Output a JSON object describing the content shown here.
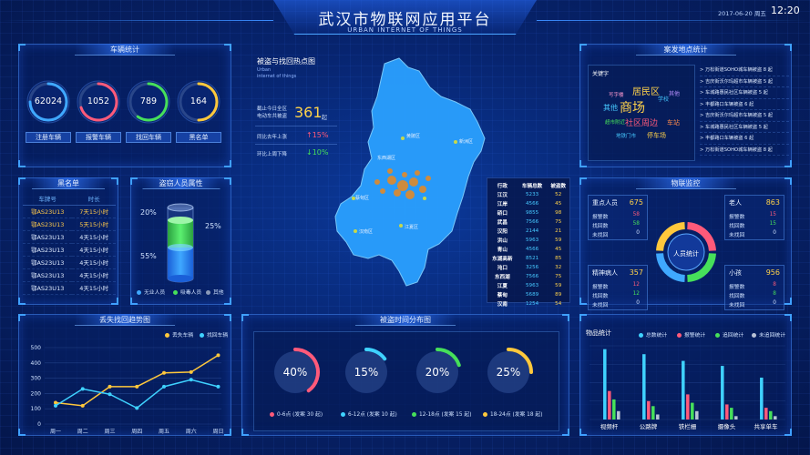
{
  "header": {
    "title": "武汉市物联网应用平台",
    "subtitle": "URBAN INTERNET OF THINGS",
    "date": "2017-06-20 周五",
    "time": "12:20"
  },
  "vehicle_stats": {
    "title": "车辆统计",
    "items": [
      {
        "value": "62024",
        "label": "注册车辆",
        "color": "#3fa8ff",
        "frac": 0.75
      },
      {
        "value": "1052",
        "label": "报警车辆",
        "color": "#ff5a7a",
        "frac": 0.7
      },
      {
        "value": "789",
        "label": "找回车辆",
        "color": "#46e05a",
        "frac": 0.6
      },
      {
        "value": "164",
        "label": "黑名单",
        "color": "#ffc83c",
        "frac": 0.5
      }
    ]
  },
  "blacklist": {
    "title": "黑名单",
    "headers": [
      "车牌号",
      "时长"
    ],
    "rows": [
      {
        "plate": "鄂AS23U13",
        "time": "7天15小时"
      },
      {
        "plate": "鄂AS23U13",
        "time": "5天15小时"
      },
      {
        "plate": "鄂AS23U13",
        "time": "4天15小时"
      },
      {
        "plate": "鄂AS23U13",
        "time": "4天15小时"
      },
      {
        "plate": "鄂AS23U13",
        "time": "4天15小时"
      },
      {
        "plate": "鄂AS23U13",
        "time": "4天15小时"
      },
      {
        "plate": "鄂AS23U13",
        "time": "4天15小时"
      }
    ]
  },
  "thief": {
    "title": "盗窃人员属性",
    "pct_top": "20%",
    "pct_right": "25%",
    "pct_bottom": "55%",
    "legend": [
      {
        "label": "无业人员",
        "color": "#3fa8ff"
      },
      {
        "label": "吸毒人员",
        "color": "#46e05a"
      },
      {
        "label": "其他",
        "color": "#8a99b8"
      }
    ]
  },
  "heatmap": {
    "title": "被盗与找回热点图",
    "sub1": "Urban",
    "sub2": "internet of things",
    "stat1_label1": "截止今日全区",
    "stat1_label2": "电动车共被盗",
    "stat1_value": "361",
    "stat1_unit": "起",
    "stat2_label": "同比去年上涨",
    "stat2_value": "↑15%",
    "stat3_label": "环比上周下降",
    "stat3_value": "↓10%",
    "districts": [
      "黄陂区",
      "新洲区",
      "蔡甸区",
      "江夏区",
      "汉南区",
      "东西湖区"
    ]
  },
  "district_table": {
    "headers": [
      "行政",
      "车辆总数",
      "被盗数"
    ],
    "rows": [
      [
        "江汉",
        "5233",
        "52"
      ],
      [
        "江岸",
        "4566",
        "45"
      ],
      [
        "硚口",
        "9855",
        "98"
      ],
      [
        "武昌",
        "7566",
        "75"
      ],
      [
        "汉阳",
        "2144",
        "21"
      ],
      [
        "洪山",
        "5963",
        "59"
      ],
      [
        "青山",
        "4566",
        "45"
      ],
      [
        "东湖高新",
        "8521",
        "85"
      ],
      [
        "沌口",
        "3256",
        "32"
      ],
      [
        "东西湖",
        "7566",
        "75"
      ],
      [
        "江夏",
        "5963",
        "59"
      ],
      [
        "蔡甸",
        "5689",
        "89"
      ],
      [
        "汉南",
        "1254",
        "54"
      ]
    ]
  },
  "hotspots": {
    "title": "案发地点统计",
    "keyword_label": "关键字",
    "words": [
      "居民区",
      "商场",
      "社区周边",
      "学校",
      "其他",
      "车站",
      "超市附近",
      "停车场",
      "地铁门市",
      "其他",
      "写字楼"
    ],
    "items": [
      "> 万松街道SOHO城车辆被盗 8 起",
      "> 吉庆街沃尔玛超市车辆被盗 5 起",
      "> 车城路惠民社区车辆被盗 5 起",
      "> 丰都路口车辆被盗 6 起",
      "> 吉庆街沃尔玛超市车辆被盗 5 起",
      "> 车城路惠民社区车辆被盗 5 起",
      "> 丰都路口车辆被盗 6 起",
      "> 万松街道SOHO城车辆被盗 8 起"
    ]
  },
  "iot": {
    "title": "物联监控",
    "center_label": "人员统计",
    "groups": [
      {
        "name": "重点人员",
        "total": "675",
        "rows": [
          [
            "报警数",
            "58"
          ],
          [
            "找回数",
            "58"
          ],
          [
            "未找回",
            "0"
          ]
        ]
      },
      {
        "name": "老人",
        "total": "863",
        "rows": [
          [
            "报警数",
            "15"
          ],
          [
            "找回数",
            "15"
          ],
          [
            "未找回",
            "0"
          ]
        ]
      },
      {
        "name": "精神病人",
        "total": "357",
        "rows": [
          [
            "报警数",
            "12"
          ],
          [
            "找回数",
            "12"
          ],
          [
            "未找回",
            "0"
          ]
        ]
      },
      {
        "name": "小孩",
        "total": "956",
        "rows": [
          [
            "报警数",
            "8"
          ],
          [
            "找回数",
            "8"
          ],
          [
            "未找回",
            "0"
          ]
        ]
      }
    ],
    "ring_colors": [
      "#ff5a7a",
      "#46e05a",
      "#3fa8ff",
      "#ffc83c"
    ]
  },
  "trend": {
    "title": "丢失找回趋势图",
    "legend": [
      {
        "label": "丢失车辆",
        "color": "#ffc83c"
      },
      {
        "label": "找回车辆",
        "color": "#3fd2ff"
      }
    ]
  },
  "time_dist": {
    "title": "被盗时间分布图",
    "items": [
      {
        "pct": "40%",
        "frac": 0.4,
        "color": "#ff5a7a",
        "legend": "0-6点 (发案 30 起)"
      },
      {
        "pct": "15%",
        "frac": 0.15,
        "color": "#3fd2ff",
        "legend": "6-12点 (发案 10 起)"
      },
      {
        "pct": "20%",
        "frac": 0.2,
        "color": "#46e05a",
        "legend": "12-18点 (发案 15 起)"
      },
      {
        "pct": "25%",
        "frac": 0.25,
        "color": "#ffc83c",
        "legend": "18-24点 (发案 18 起)"
      }
    ]
  },
  "goods": {
    "title": "物品统计",
    "legend": [
      {
        "label": "总数统计",
        "color": "#3fd2ff"
      },
      {
        "label": "报警统计",
        "color": "#ff5a7a"
      },
      {
        "label": "追回统计",
        "color": "#46e05a"
      },
      {
        "label": "未追回统计",
        "color": "#b8c2d6"
      }
    ]
  },
  "chart_data": [
    {
      "type": "line",
      "categories": [
        "周一",
        "周二",
        "周三",
        "周四",
        "周五",
        "周六",
        "周日"
      ],
      "ylim": [
        0,
        500
      ],
      "yticks": [
        "0",
        "100",
        "200",
        "300",
        "400",
        "500"
      ],
      "series": [
        {
          "name": "丢失车辆",
          "values": [
            140,
            120,
            245,
            245,
            335,
            340,
            450
          ],
          "color": "#ffc83c"
        },
        {
          "name": "找回车辆",
          "values": [
            120,
            230,
            195,
            105,
            245,
            290,
            245
          ],
          "color": "#3fd2ff"
        }
      ]
    },
    {
      "type": "bar",
      "categories": [
        "视频杆",
        "公路牌",
        "铁栏栅",
        "摄像头",
        "共享单车"
      ],
      "ylim": [
        0,
        400
      ],
      "series": [
        {
          "name": "总数统计",
          "values": [
            420,
            390,
            350,
            320,
            250
          ],
          "color": "#3fd2ff"
        },
        {
          "name": "报警统计",
          "values": [
            170,
            110,
            150,
            90,
            70
          ],
          "color": "#ff5a7a"
        },
        {
          "name": "追回统计",
          "values": [
            120,
            80,
            100,
            70,
            50
          ],
          "color": "#46e05a"
        },
        {
          "name": "未追回统计",
          "values": [
            50,
            30,
            50,
            20,
            20
          ],
          "color": "#b8c2d6"
        }
      ]
    }
  ]
}
